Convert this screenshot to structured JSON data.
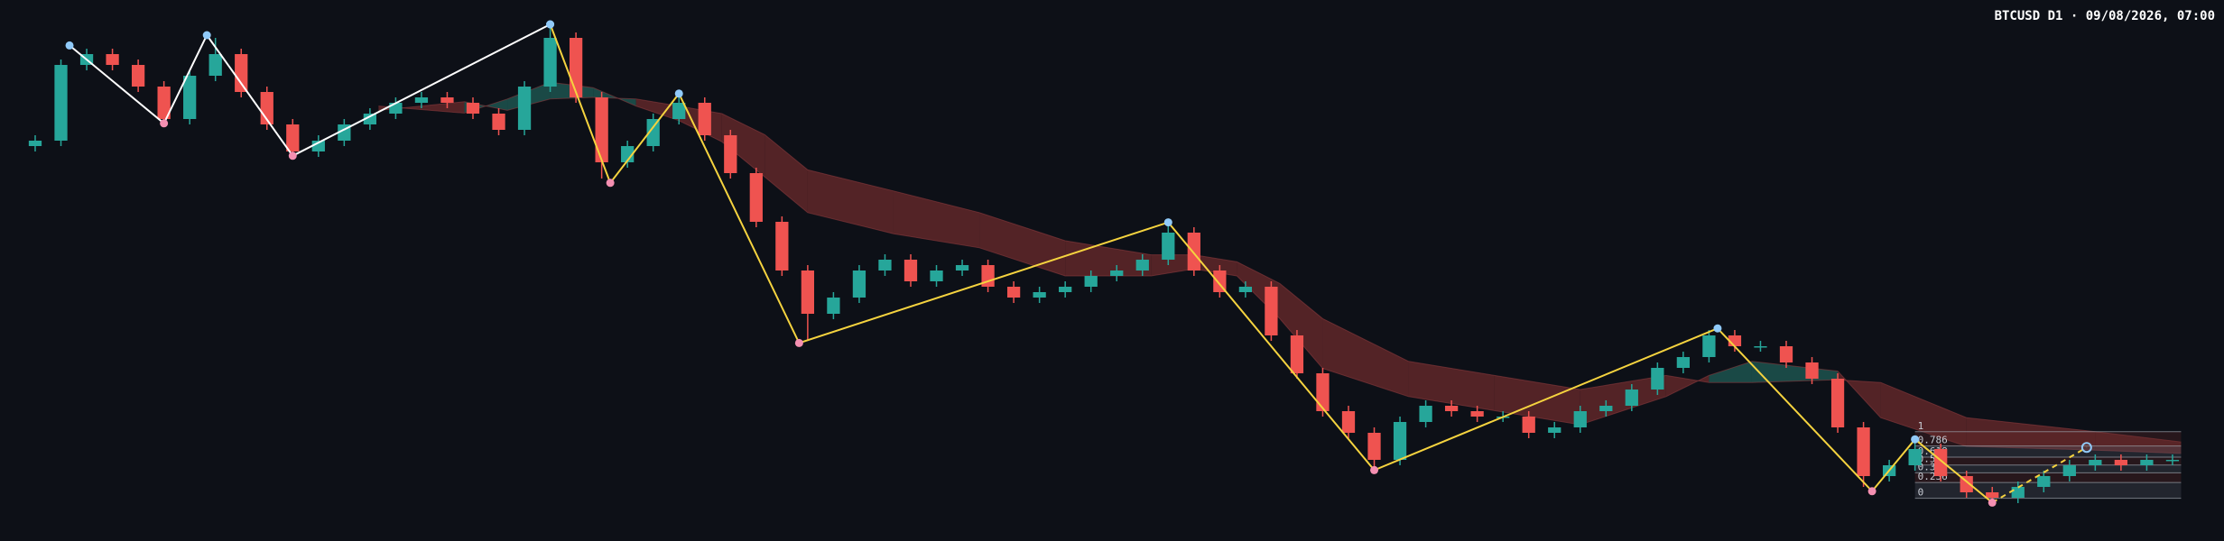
{
  "chart_data": {
    "type": "candlestick",
    "title": "BTCUSD D1 · 09/08/2026, 07:00",
    "xlim": [
      -4.1,
      255
    ],
    "ylim": [
      0,
      100
    ],
    "up_color": "#26a69a",
    "down_color": "#ef5350",
    "x": [
      0,
      3,
      6,
      9,
      12,
      15,
      18,
      21,
      24,
      27,
      30,
      33,
      36,
      39,
      42,
      45,
      48,
      51,
      54,
      57,
      60,
      63,
      66,
      69,
      72,
      75,
      78,
      81,
      84,
      87,
      90,
      93,
      96,
      99,
      102,
      105,
      108,
      111,
      114,
      117,
      120,
      123,
      126,
      129,
      132,
      135,
      138,
      141,
      144,
      147,
      150,
      153,
      156,
      159,
      162,
      165,
      168,
      171,
      174,
      177,
      180,
      183,
      186,
      189,
      192,
      195,
      198,
      201,
      204,
      207,
      210,
      213,
      216,
      219,
      222,
      225,
      228,
      231,
      234,
      237,
      240,
      243,
      246,
      249
    ],
    "open": [
      73,
      74,
      88,
      90,
      88,
      84,
      78,
      86,
      90,
      83,
      77,
      72,
      74,
      77,
      79,
      81,
      82,
      81,
      79,
      76,
      84,
      93,
      82,
      70,
      73,
      78,
      81,
      75,
      68,
      59,
      50,
      42,
      45,
      50,
      52,
      48,
      50,
      51,
      47,
      45,
      46,
      47,
      49,
      50,
      52,
      57,
      50,
      46,
      47,
      38,
      31,
      24,
      20,
      15,
      22,
      25,
      24,
      23,
      23,
      20,
      21,
      24,
      25,
      28,
      32,
      34,
      38,
      36,
      36,
      33,
      30,
      21,
      12,
      14,
      17,
      12,
      9,
      8,
      10,
      12,
      14,
      15,
      14,
      15
    ],
    "high": [
      75,
      89,
      91,
      91,
      89,
      85,
      87,
      93,
      91,
      84,
      78,
      75,
      78,
      80,
      82,
      83,
      83,
      82,
      80,
      85,
      95,
      94,
      83,
      74,
      79,
      83,
      82,
      76,
      69,
      60,
      51,
      46,
      51,
      53,
      53,
      51,
      52,
      52,
      48,
      47,
      48,
      50,
      51,
      53,
      59,
      58,
      51,
      48,
      48,
      39,
      32,
      25,
      21,
      23,
      26,
      26,
      25,
      24,
      24,
      22,
      25,
      26,
      29,
      33,
      35,
      39,
      39,
      37,
      37,
      34,
      31,
      22,
      15,
      19,
      18,
      13,
      10,
      11,
      13,
      15,
      16,
      16,
      16,
      16
    ],
    "low": [
      72,
      73,
      87,
      87,
      83,
      77,
      77,
      85,
      82,
      76,
      71,
      71,
      73,
      76,
      78,
      80,
      80,
      78,
      75,
      75,
      83,
      81,
      67,
      69,
      72,
      77,
      74,
      67,
      58,
      49,
      37,
      41,
      44,
      49,
      47,
      47,
      49,
      46,
      44,
      44,
      45,
      46,
      48,
      49,
      51,
      49,
      45,
      45,
      37,
      30,
      23,
      19,
      13,
      14,
      21,
      23,
      22,
      22,
      19,
      19,
      20,
      23,
      24,
      27,
      31,
      33,
      35,
      35,
      32,
      29,
      20,
      10,
      11,
      13,
      11,
      8,
      7,
      7,
      9,
      11,
      13,
      13,
      13,
      14
    ],
    "close": [
      74,
      88,
      90,
      88,
      84,
      78,
      86,
      90,
      83,
      77,
      72,
      74,
      77,
      79,
      81,
      82,
      81,
      79,
      76,
      84,
      93,
      82,
      70,
      73,
      78,
      81,
      75,
      68,
      59,
      50,
      42,
      45,
      50,
      52,
      48,
      50,
      51,
      47,
      45,
      46,
      47,
      49,
      50,
      52,
      57,
      50,
      46,
      47,
      38,
      31,
      24,
      20,
      15,
      22,
      25,
      24,
      23,
      23,
      20,
      21,
      24,
      25,
      28,
      32,
      34,
      38,
      36,
      36,
      33,
      30,
      21,
      12,
      14,
      17,
      12,
      9,
      8,
      10,
      12,
      14,
      15,
      14,
      15,
      15
    ],
    "band": {
      "x": [
        40,
        50,
        55,
        60,
        65,
        70,
        75,
        80,
        85,
        90,
        100,
        110,
        120,
        130,
        135,
        140,
        145,
        150,
        160,
        170,
        180,
        190,
        195,
        200,
        210,
        215,
        225,
        240,
        250
      ],
      "fast": [
        80.4,
        79.1,
        81.7,
        84.8,
        83.8,
        80.4,
        77.7,
        73.8,
        67.3,
        60.7,
        56.8,
        54.2,
        49,
        49,
        50.3,
        49,
        41.1,
        31.9,
        26.7,
        24.1,
        21.5,
        26.7,
        30.6,
        33.2,
        31.4,
        22.8,
        17.5,
        16.8,
        16.2
      ],
      "slow": [
        79.6,
        81.2,
        79.6,
        81.7,
        82,
        81.7,
        80.4,
        79,
        75.1,
        68.6,
        64.7,
        60.7,
        55.5,
        52.9,
        52.9,
        51.6,
        47.6,
        41.1,
        33.2,
        30.6,
        28,
        30.6,
        29.3,
        29.3,
        29.8,
        29.3,
        22.8,
        20.2,
        18.3
      ],
      "bull_color": "#1f5c57",
      "bear_color": "#6b2a2c"
    },
    "zigzag": [
      {
        "x": [
          4,
          15,
          20,
          30,
          60
        ],
        "values": [
          91.6,
          77.2,
          93.5,
          71.2,
          95.5
        ],
        "color": "#ffffff"
      },
      {
        "x": [
          60,
          67,
          75,
          89,
          132,
          156,
          196,
          214,
          219,
          228
        ],
        "values": [
          95.5,
          66.2,
          82.7,
          36.6,
          58.9,
          13.1,
          39.3,
          9.2,
          18.8,
          7.1
        ],
        "color": "#f5d33f"
      }
    ],
    "projection": {
      "x": [
        228,
        239
      ],
      "values": [
        7.1,
        17.3
      ],
      "color": "#f5d33f"
    },
    "high_color": "#90caf9",
    "low_color": "#f48fb1",
    "fib": {
      "levels": [
        1,
        0.786,
        0.618,
        0.5,
        0.382,
        0.236,
        0
      ],
      "high": 20.2,
      "low": 7.9,
      "x": [
        219,
        250
      ]
    }
  }
}
